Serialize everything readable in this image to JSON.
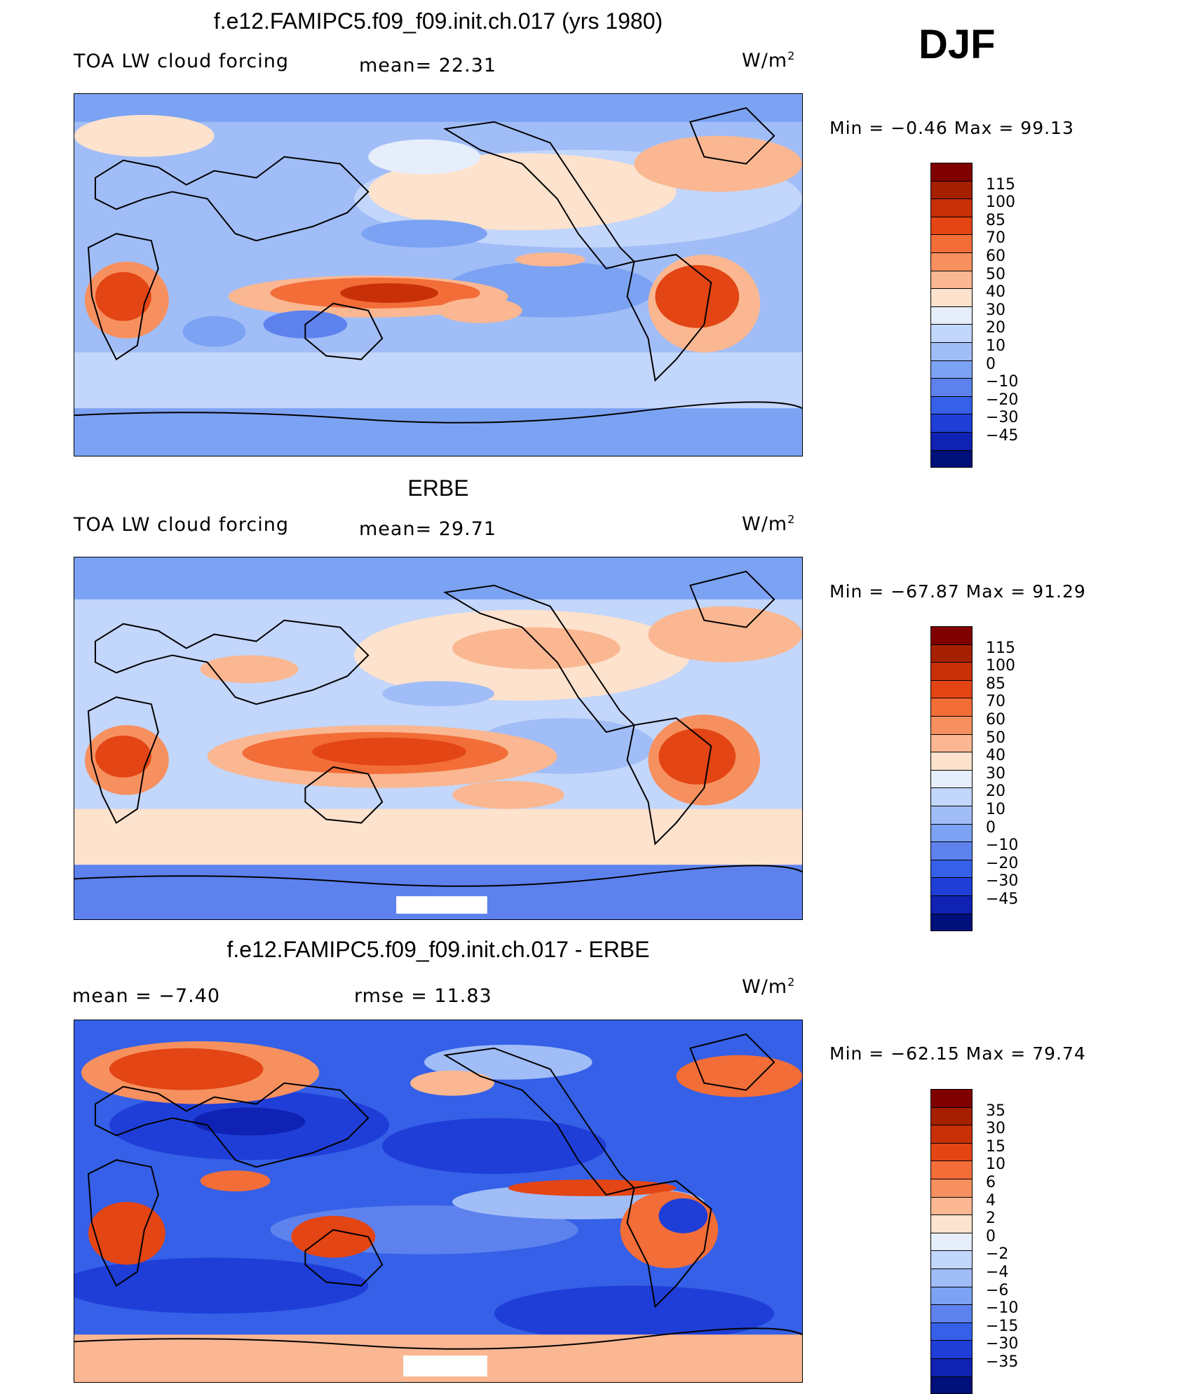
{
  "season": "DJF",
  "panels": [
    {
      "title": "f.e12.FAMIPC5.f09_f09.init.ch.017 (yrs 1980)",
      "left_label": "TOA LW cloud forcing",
      "stat1": "mean=   22.31",
      "units": "W/m",
      "units_sup": "2",
      "minmax": "Min =   −0.46  Max =   99.13",
      "colorbar": {
        "labels": [
          "115",
          "100",
          "85",
          "70",
          "60",
          "50",
          "40",
          "30",
          "20",
          "10",
          "0",
          "−10",
          "−20",
          "−30",
          "−45"
        ],
        "colors": [
          "#800000",
          "#a52000",
          "#c83008",
          "#e34514",
          "#f26d38",
          "#f7905f",
          "#fab791",
          "#fde2cd",
          "#e6eefc",
          "#c3d6fb",
          "#a1bdf7",
          "#7ca2f3",
          "#5d82ee",
          "#3560e7",
          "#1f3ed8",
          "#0f22b3",
          "#00107a"
        ]
      },
      "map_style": "model"
    },
    {
      "title": "ERBE",
      "left_label": "TOA LW cloud forcing",
      "stat1": "mean=   29.71",
      "units": "W/m",
      "units_sup": "2",
      "minmax": "Min = −67.87  Max =   91.29",
      "colorbar": {
        "labels": [
          "115",
          "100",
          "85",
          "70",
          "60",
          "50",
          "40",
          "30",
          "20",
          "10",
          "0",
          "−10",
          "−20",
          "−30",
          "−45"
        ],
        "colors": [
          "#800000",
          "#a52000",
          "#c83008",
          "#e34514",
          "#f26d38",
          "#f7905f",
          "#fab791",
          "#fde2cd",
          "#e6eefc",
          "#c3d6fb",
          "#a1bdf7",
          "#7ca2f3",
          "#5d82ee",
          "#3560e7",
          "#1f3ed8",
          "#0f22b3",
          "#00107a"
        ]
      },
      "map_style": "obs"
    },
    {
      "title": "f.e12.FAMIPC5.f09_f09.init.ch.017 - ERBE",
      "left_label": "mean =    −7.40",
      "stat1": "rmse =    11.83",
      "units": "W/m",
      "units_sup": "2",
      "minmax": "Min = −62.15  Max =   79.74",
      "colorbar": {
        "labels": [
          "35",
          "30",
          "15",
          "10",
          "6",
          "4",
          "2",
          "0",
          "−2",
          "−4",
          "−6",
          "−10",
          "−15",
          "−30",
          "−35"
        ],
        "colors": [
          "#800000",
          "#a52000",
          "#c83008",
          "#e34514",
          "#f26d38",
          "#f7905f",
          "#fab791",
          "#fde2cd",
          "#e6eefc",
          "#c3d6fb",
          "#a1bdf7",
          "#7ca2f3",
          "#5d82ee",
          "#3560e7",
          "#1f3ed8",
          "#0f22b3",
          "#00107a"
        ]
      },
      "map_style": "diff"
    }
  ]
}
